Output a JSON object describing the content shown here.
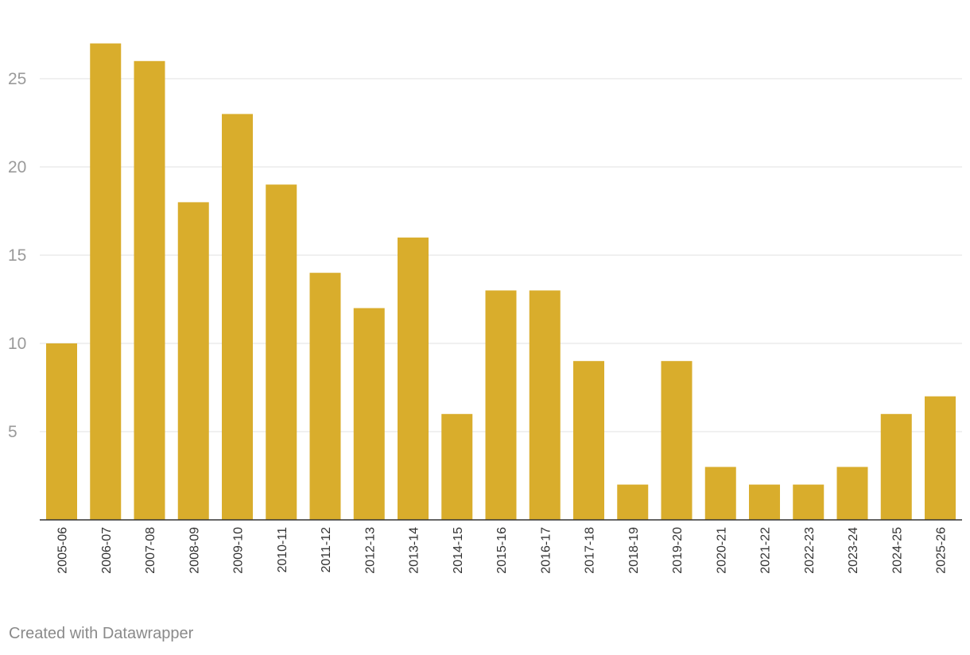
{
  "colors": {
    "bar": "#d9ad2c",
    "grid": "#e2e2e2",
    "axis": "#333333"
  },
  "chart_data": {
    "type": "bar",
    "categories": [
      "2005-06",
      "2006-07",
      "2007-08",
      "2008-09",
      "2009-10",
      "2010-11",
      "2011-12",
      "2012-13",
      "2013-14",
      "2014-15",
      "2015-16",
      "2016-17",
      "2017-18",
      "2018-19",
      "2019-20",
      "2020-21",
      "2021-22",
      "2022-23",
      "2023-24",
      "2024-25",
      "2025-26"
    ],
    "values": [
      10,
      27,
      26,
      18,
      23,
      19,
      14,
      12,
      16,
      6,
      13,
      13,
      9,
      2,
      9,
      3,
      2,
      2,
      3,
      6,
      7
    ],
    "yticks": [
      5,
      10,
      15,
      20,
      25
    ],
    "ylim": [
      0,
      27.5
    ],
    "grid": true
  },
  "footer": {
    "credit": "Created with Datawrapper"
  }
}
